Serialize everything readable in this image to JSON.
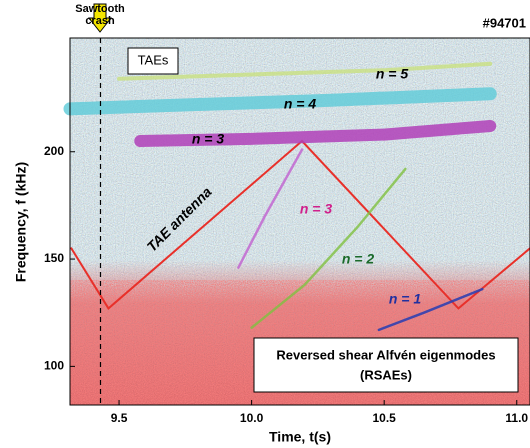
{
  "chart_data": {
    "type": "spectrogram",
    "xlabel": "Time, t(s)",
    "ylabel": "Frequency, f (kHz)",
    "xlim": [
      9.315,
      11.05
    ],
    "ylim": [
      82,
      253
    ],
    "xticks": [
      {
        "value": 9.5,
        "label": "9.5"
      },
      {
        "value": 10.0,
        "label": "10.0"
      },
      {
        "value": 10.5,
        "label": "10.5"
      },
      {
        "value": 11.0,
        "label": "11.0"
      }
    ],
    "yticks": [
      100,
      150,
      200
    ],
    "annotations": [
      "Sawtooth",
      "crash",
      "#94701",
      "TAEs",
      "Reversed shear Alfvén eigenmodes",
      "(RSAEs)"
    ],
    "vlines": [
      9.43
    ],
    "series": [
      {
        "name": "TAE antenna",
        "color": "#e8302a",
        "x": [
          9.32,
          9.46,
          10.19,
          10.78,
          11.05
        ],
        "values": [
          155,
          127,
          205,
          127,
          155
        ]
      },
      {
        "name": "n = 5",
        "color": "#c8e07a",
        "x": [
          9.5,
          10.0,
          10.5,
          10.9
        ],
        "values": [
          234,
          236,
          238,
          241
        ]
      },
      {
        "name": "n = 4",
        "color": "#5ccbd8",
        "x": [
          9.315,
          9.8,
          10.3,
          10.9
        ],
        "values": [
          220,
          222,
          224,
          227
        ]
      },
      {
        "name": "n = 3",
        "color": "#b040b8",
        "x": [
          9.58,
          10.0,
          10.5,
          10.9
        ],
        "values": [
          205,
          206,
          208,
          212
        ]
      },
      {
        "name": "n = 3",
        "color": "#c060d0",
        "x": [
          9.95,
          10.05,
          10.19
        ],
        "values": [
          146,
          170,
          201
        ]
      },
      {
        "name": "n = 2",
        "color": "#80c040",
        "x": [
          10.0,
          10.2,
          10.4,
          10.58
        ],
        "values": [
          118,
          138,
          165,
          192
        ]
      },
      {
        "name": "n = 1",
        "color": "#3040b0",
        "x": [
          10.48,
          10.65,
          10.87
        ],
        "values": [
          117,
          125,
          136
        ]
      }
    ]
  }
}
